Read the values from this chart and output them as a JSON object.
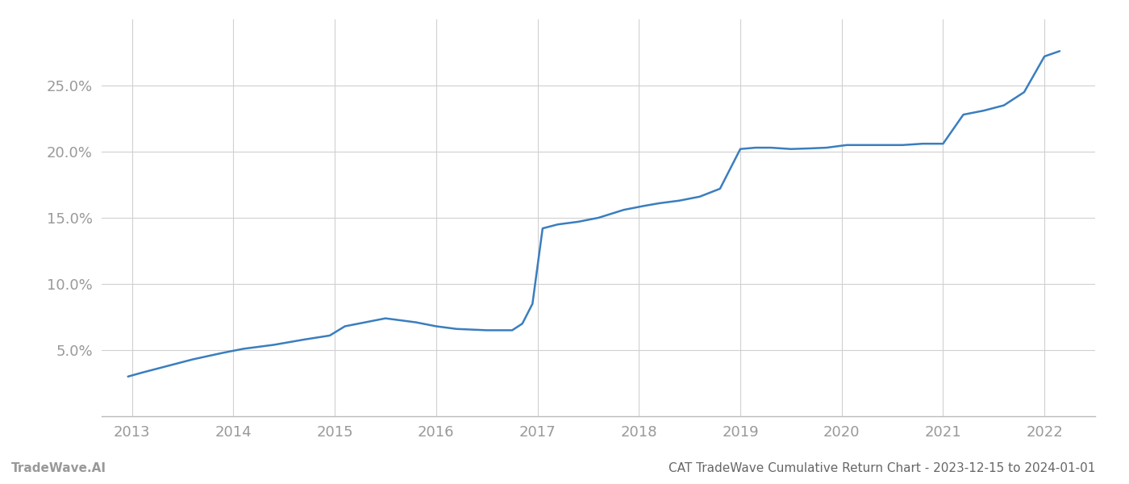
{
  "x": [
    2012.96,
    2013.1,
    2013.3,
    2013.6,
    2013.9,
    2014.1,
    2014.4,
    2014.7,
    2014.95,
    2015.1,
    2015.3,
    2015.5,
    2015.8,
    2016.0,
    2016.2,
    2016.5,
    2016.75,
    2016.85,
    2016.95,
    2017.05,
    2017.2,
    2017.4,
    2017.6,
    2017.85,
    2018.05,
    2018.2,
    2018.4,
    2018.6,
    2018.8,
    2019.0,
    2019.15,
    2019.3,
    2019.5,
    2019.7,
    2019.85,
    2020.05,
    2020.2,
    2020.4,
    2020.6,
    2020.8,
    2021.0,
    2021.2,
    2021.4,
    2021.6,
    2021.8,
    2022.0,
    2022.15
  ],
  "y": [
    3.0,
    3.3,
    3.7,
    4.3,
    4.8,
    5.1,
    5.4,
    5.8,
    6.1,
    6.8,
    7.1,
    7.4,
    7.1,
    6.8,
    6.6,
    6.5,
    6.5,
    7.0,
    8.5,
    14.2,
    14.5,
    14.7,
    15.0,
    15.6,
    15.9,
    16.1,
    16.3,
    16.6,
    17.2,
    20.2,
    20.3,
    20.3,
    20.2,
    20.25,
    20.3,
    20.5,
    20.5,
    20.5,
    20.5,
    20.6,
    20.6,
    22.8,
    23.1,
    23.5,
    24.5,
    27.2,
    27.6
  ],
  "line_color": "#3a7ebf",
  "line_width": 1.8,
  "background_color": "#ffffff",
  "grid_color": "#d0d0d0",
  "title": "CAT TradeWave Cumulative Return Chart - 2023-12-15 to 2024-01-01",
  "watermark": "TradeWave.AI",
  "xlim": [
    2012.7,
    2022.5
  ],
  "ylim": [
    0.0,
    30.0
  ],
  "xticks": [
    2013,
    2014,
    2015,
    2016,
    2017,
    2018,
    2019,
    2020,
    2021,
    2022
  ],
  "yticks": [
    5.0,
    10.0,
    15.0,
    20.0,
    25.0
  ],
  "tick_label_color": "#999999",
  "title_color": "#666666",
  "watermark_color": "#999999",
  "title_fontsize": 11,
  "watermark_fontsize": 11,
  "tick_fontsize": 13
}
